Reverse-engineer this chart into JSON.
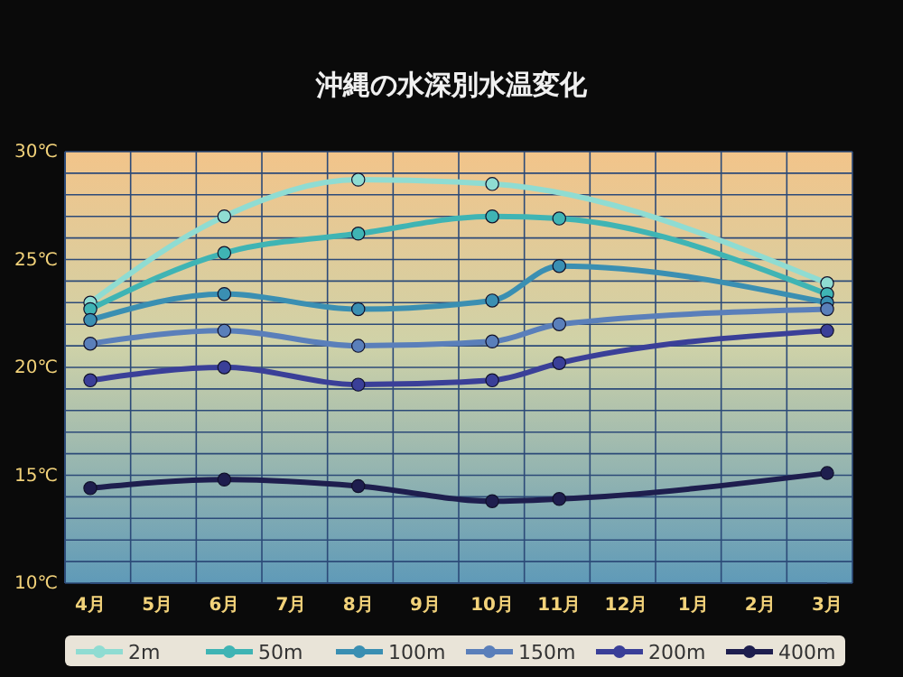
{
  "chart_data": {
    "type": "line",
    "title": "沖縄の水深別水温変化",
    "categories": [
      "4月",
      "5月",
      "6月",
      "7月",
      "8月",
      "9月",
      "10月",
      "11月",
      "12月",
      "1月",
      "2月",
      "3月"
    ],
    "ylim": [
      10,
      30
    ],
    "yticks": [
      {
        "value": 10,
        "label": "10℃"
      },
      {
        "value": 11,
        "label": null
      },
      {
        "value": 12,
        "label": null
      },
      {
        "value": 13,
        "label": null
      },
      {
        "value": 14,
        "label": null
      },
      {
        "value": 15,
        "label": "15℃"
      },
      {
        "value": 16,
        "label": null
      },
      {
        "value": 17,
        "label": null
      },
      {
        "value": 18,
        "label": null
      },
      {
        "value": 19,
        "label": null
      },
      {
        "value": 20,
        "label": "20℃"
      },
      {
        "value": 21,
        "label": null
      },
      {
        "value": 22,
        "label": null
      },
      {
        "value": 23,
        "label": null
      },
      {
        "value": 24,
        "label": null
      },
      {
        "value": 25,
        "label": "25℃"
      },
      {
        "value": 26,
        "label": null
      },
      {
        "value": 27,
        "label": null
      },
      {
        "value": 28,
        "label": null
      },
      {
        "value": 29,
        "label": null
      },
      {
        "value": 30,
        "label": "30℃"
      }
    ],
    "grid": true,
    "legend": "bottom",
    "marker": "circle",
    "line_style": "solid",
    "series": [
      {
        "name": "2m",
        "color": "#8fdcd2",
        "values": [
          23.0,
          null,
          27.0,
          null,
          28.7,
          null,
          28.5,
          null,
          null,
          null,
          null,
          23.9
        ]
      },
      {
        "name": "50m",
        "color": "#3fb4b4",
        "values": [
          22.7,
          null,
          25.3,
          null,
          26.2,
          null,
          27.0,
          26.9,
          null,
          null,
          null,
          23.4
        ]
      },
      {
        "name": "100m",
        "color": "#3a8fb2",
        "values": [
          22.2,
          null,
          23.4,
          null,
          22.7,
          null,
          23.1,
          24.7,
          null,
          null,
          null,
          23.0
        ]
      },
      {
        "name": "150m",
        "color": "#5a7fba",
        "values": [
          21.1,
          null,
          21.7,
          null,
          21.0,
          null,
          21.2,
          22.0,
          null,
          null,
          null,
          22.7
        ]
      },
      {
        "name": "200m",
        "color": "#3a3f98",
        "values": [
          19.4,
          null,
          20.0,
          null,
          19.2,
          null,
          19.4,
          20.2,
          null,
          null,
          null,
          21.7
        ]
      },
      {
        "name": "400m",
        "color": "#1e1e4e",
        "values": [
          14.4,
          null,
          14.8,
          null,
          14.5,
          null,
          13.8,
          13.9,
          null,
          null,
          null,
          15.1
        ]
      }
    ]
  }
}
